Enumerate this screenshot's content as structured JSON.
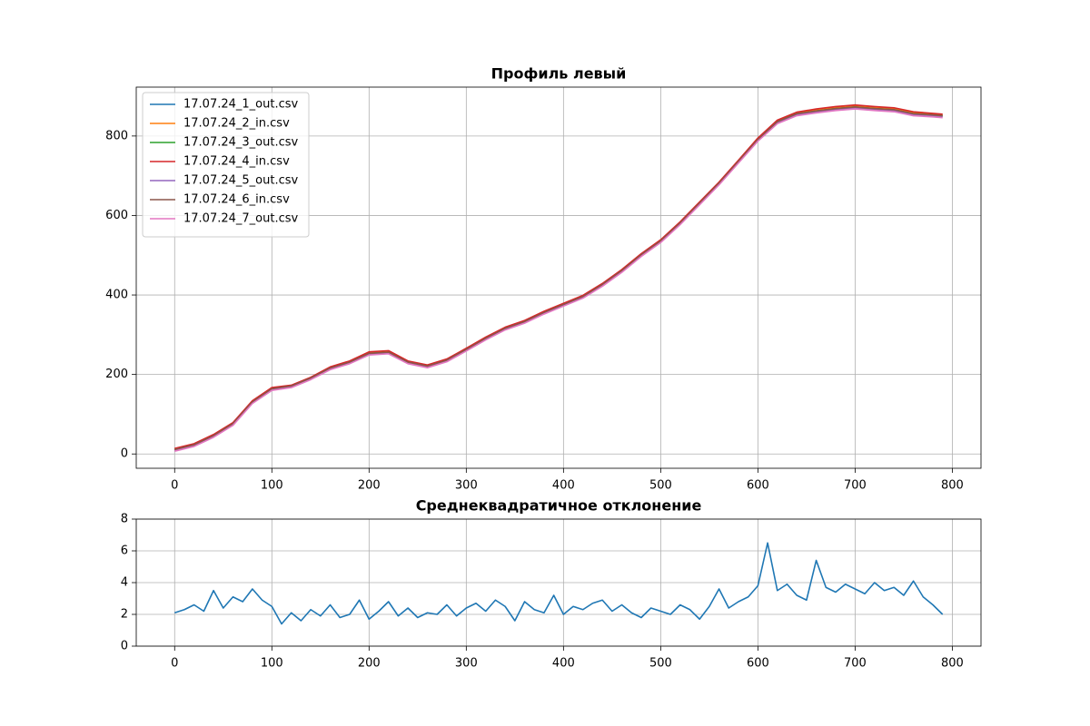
{
  "chart_data": [
    {
      "type": "line",
      "title": "Профиль левый",
      "x": [
        0,
        20,
        40,
        60,
        80,
        100,
        120,
        140,
        160,
        180,
        200,
        220,
        240,
        260,
        280,
        300,
        320,
        340,
        360,
        380,
        400,
        420,
        440,
        460,
        480,
        500,
        520,
        540,
        560,
        580,
        600,
        620,
        640,
        660,
        680,
        700,
        720,
        740,
        760,
        780,
        790
      ],
      "xlim": [
        -39.5,
        829.5
      ],
      "xticks": [
        0,
        100,
        200,
        300,
        400,
        500,
        600,
        700,
        800
      ],
      "ylim": [
        -36,
        923
      ],
      "yticks": [
        0,
        200,
        400,
        600,
        800
      ],
      "grid": true,
      "legend": "upper left",
      "series": [
        {
          "name": "17.07.24_1_out.csv",
          "color": "#1f77b4",
          "values": [
            10,
            22,
            45,
            75,
            130,
            163,
            170,
            190,
            215,
            230,
            252,
            255,
            230,
            220,
            235,
            262,
            290,
            315,
            332,
            355,
            375,
            395,
            425,
            460,
            500,
            535,
            580,
            630,
            680,
            735,
            790,
            835,
            855,
            862,
            868,
            872,
            868,
            865,
            855,
            852,
            850
          ]
        },
        {
          "name": "17.07.24_2_in.csv",
          "color": "#ff7f0e",
          "values": [
            12,
            24,
            47,
            77,
            132,
            165,
            172,
            192,
            217,
            232,
            254,
            257,
            232,
            222,
            237,
            264,
            292,
            317,
            334,
            357,
            377,
            397,
            427,
            462,
            502,
            537,
            582,
            632,
            682,
            737,
            792,
            838,
            858,
            865,
            871,
            875,
            871,
            868,
            858,
            855,
            853
          ]
        },
        {
          "name": "17.07.24_3_out.csv",
          "color": "#2ca02c",
          "values": [
            11,
            23,
            46,
            76,
            131,
            164,
            171,
            191,
            216,
            231,
            253,
            256,
            231,
            221,
            236,
            263,
            291,
            316,
            333,
            356,
            376,
            396,
            426,
            461,
            501,
            536,
            581,
            631,
            681,
            736,
            791,
            836,
            856,
            863,
            869,
            873,
            869,
            866,
            856,
            853,
            851
          ]
        },
        {
          "name": "17.07.24_4_in.csv",
          "color": "#d62728",
          "values": [
            14,
            26,
            49,
            79,
            134,
            167,
            173,
            193,
            219,
            234,
            257,
            260,
            234,
            224,
            239,
            266,
            294,
            319,
            336,
            359,
            379,
            399,
            429,
            464,
            504,
            539,
            584,
            634,
            684,
            739,
            795,
            840,
            860,
            868,
            874,
            878,
            874,
            871,
            861,
            857,
            855
          ]
        },
        {
          "name": "17.07.24_5_out.csv",
          "color": "#9467bd",
          "values": [
            9,
            21,
            44,
            74,
            129,
            162,
            169,
            189,
            214,
            229,
            251,
            254,
            229,
            219,
            234,
            261,
            289,
            314,
            331,
            354,
            374,
            394,
            424,
            459,
            499,
            534,
            579,
            629,
            679,
            734,
            789,
            834,
            854,
            861,
            867,
            871,
            867,
            864,
            854,
            851,
            849
          ]
        },
        {
          "name": "17.07.24_6_in.csv",
          "color": "#8c564b",
          "values": [
            11,
            23,
            46,
            76,
            131,
            164,
            171,
            191,
            216,
            231,
            253,
            256,
            231,
            221,
            236,
            263,
            291,
            316,
            333,
            356,
            376,
            396,
            426,
            461,
            501,
            536,
            581,
            631,
            681,
            736,
            791,
            836,
            856,
            863,
            869,
            873,
            869,
            866,
            856,
            853,
            851
          ]
        },
        {
          "name": "17.07.24_7_out.csv",
          "color": "#e377c2",
          "values": [
            7,
            19,
            42,
            72,
            127,
            160,
            167,
            187,
            212,
            227,
            249,
            252,
            227,
            217,
            232,
            259,
            287,
            312,
            329,
            352,
            372,
            392,
            422,
            457,
            497,
            532,
            577,
            627,
            677,
            732,
            787,
            831,
            851,
            858,
            864,
            868,
            864,
            861,
            851,
            848,
            846
          ]
        }
      ]
    },
    {
      "type": "line",
      "title": "Среднеквадратичное отклонение",
      "x": [
        0,
        10,
        20,
        30,
        40,
        50,
        60,
        70,
        80,
        90,
        100,
        110,
        120,
        130,
        140,
        150,
        160,
        170,
        180,
        190,
        200,
        210,
        220,
        230,
        240,
        250,
        260,
        270,
        280,
        290,
        300,
        310,
        320,
        330,
        340,
        350,
        360,
        370,
        380,
        390,
        400,
        410,
        420,
        430,
        440,
        450,
        460,
        470,
        480,
        490,
        500,
        510,
        520,
        530,
        540,
        550,
        560,
        570,
        580,
        590,
        600,
        610,
        620,
        630,
        640,
        650,
        660,
        670,
        680,
        690,
        700,
        710,
        720,
        730,
        740,
        750,
        760,
        770,
        780,
        790
      ],
      "values": [
        2.1,
        2.3,
        2.6,
        2.2,
        3.5,
        2.4,
        3.1,
        2.8,
        3.6,
        2.9,
        2.5,
        1.4,
        2.1,
        1.6,
        2.3,
        1.9,
        2.6,
        1.8,
        2.0,
        2.9,
        1.7,
        2.2,
        2.8,
        1.9,
        2.4,
        1.8,
        2.1,
        2.0,
        2.6,
        1.9,
        2.4,
        2.7,
        2.2,
        2.9,
        2.5,
        1.6,
        2.8,
        2.3,
        2.1,
        3.2,
        2.0,
        2.5,
        2.3,
        2.7,
        2.9,
        2.2,
        2.6,
        2.1,
        1.8,
        2.4,
        2.2,
        2.0,
        2.6,
        2.3,
        1.7,
        2.5,
        3.6,
        2.4,
        2.8,
        3.1,
        3.8,
        6.5,
        3.5,
        3.9,
        3.2,
        2.9,
        5.4,
        3.7,
        3.4,
        3.9,
        3.6,
        3.3,
        4.0,
        3.5,
        3.7,
        3.2,
        4.1,
        3.1,
        2.6,
        2.0
      ],
      "color": "#1f77b4",
      "xlim": [
        -39.5,
        829.5
      ],
      "xticks": [
        0,
        100,
        200,
        300,
        400,
        500,
        600,
        700,
        800
      ],
      "ylim": [
        0,
        8
      ],
      "yticks": [
        0,
        2,
        4,
        6,
        8
      ],
      "grid": true
    }
  ]
}
